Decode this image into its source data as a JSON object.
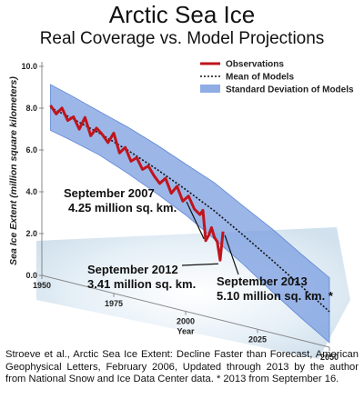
{
  "chart_data": {
    "type": "line",
    "title": "Arctic Sea Ice",
    "subtitle": "Real Coverage vs. Model Projections",
    "ylabel": "Sea Ice Extent (million square kilometers)",
    "xlabel": "Year",
    "xlim": [
      1950,
      2050
    ],
    "ylim": [
      0,
      10
    ],
    "x_ticks": [
      "1950",
      "1975",
      "2000",
      "2025",
      "2050"
    ],
    "y_ticks": [
      "0.0",
      "2.0",
      "4.0",
      "6.0",
      "8.0",
      "10.0"
    ],
    "legend": [
      {
        "label": "Observations",
        "color": "#c0141c",
        "style": "solid"
      },
      {
        "label": "Mean of Models",
        "color": "#111111",
        "style": "dotted"
      },
      {
        "label": "Standard Deviation of Models",
        "color": "#7b9ee0",
        "style": "band"
      }
    ],
    "legend_position": "top-right",
    "series": [
      {
        "name": "Observations",
        "color": "#c0141c",
        "x": [
          1953,
          1955,
          1957,
          1959,
          1961,
          1963,
          1965,
          1967,
          1969,
          1971,
          1973,
          1975,
          1977,
          1979,
          1981,
          1983,
          1985,
          1987,
          1989,
          1991,
          1993,
          1995,
          1997,
          1999,
          2001,
          2003,
          2005,
          2006,
          2007,
          2008,
          2009,
          2010,
          2011,
          2012,
          2013
        ],
        "values": [
          8.3,
          8.0,
          8.4,
          7.9,
          8.2,
          7.7,
          8.4,
          7.6,
          8.1,
          7.9,
          7.6,
          8.2,
          7.3,
          7.7,
          7.1,
          7.4,
          6.9,
          7.2,
          6.8,
          6.5,
          6.9,
          6.2,
          6.7,
          6.0,
          6.4,
          5.8,
          5.6,
          5.9,
          4.25,
          4.6,
          5.1,
          4.6,
          4.4,
          3.41,
          5.1
        ]
      },
      {
        "name": "Mean of Models",
        "color": "#111111",
        "x": [
          1953,
          1960,
          1970,
          1980,
          1990,
          2000,
          2010,
          2020,
          2030,
          2040,
          2050
        ],
        "values": [
          8.2,
          8.1,
          7.9,
          7.6,
          7.2,
          6.7,
          6.1,
          5.3,
          4.4,
          3.4,
          2.3
        ]
      }
    ],
    "band": {
      "name": "Standard Deviation of Models",
      "x": [
        1953,
        1960,
        1970,
        1980,
        1990,
        2000,
        2010,
        2020,
        2030,
        2040,
        2050
      ],
      "upper": [
        9.3,
        9.2,
        9.0,
        8.8,
        8.5,
        8.1,
        7.7,
        7.0,
        6.3,
        5.4,
        4.5
      ],
      "lower": [
        7.1,
        7.0,
        6.8,
        6.4,
        5.9,
        5.3,
        4.5,
        3.6,
        2.5,
        1.4,
        0.3
      ]
    },
    "annotations": [
      {
        "id": "sep2007",
        "lines": [
          "September 2007",
          "4.25 million sq. km."
        ]
      },
      {
        "id": "sep2012",
        "lines": [
          "September 2012",
          "3.41 million sq. km."
        ]
      },
      {
        "id": "sep2013",
        "lines": [
          "September 2013",
          "5.10 million sq. km. *"
        ]
      }
    ]
  },
  "source_note": "Stroeve et al., Arctic Sea Ice Extent: Decline Faster than Forecast, American Geophysical Letters,  February 2006, Updated through 2013 by the author from National Snow and Ice Data Center data. * 2013 from September 16.",
  "colors": {
    "observations": "#c0141c",
    "band": "#7b9ee0",
    "ice_background": "#dce9f2",
    "mean": "#111111"
  }
}
